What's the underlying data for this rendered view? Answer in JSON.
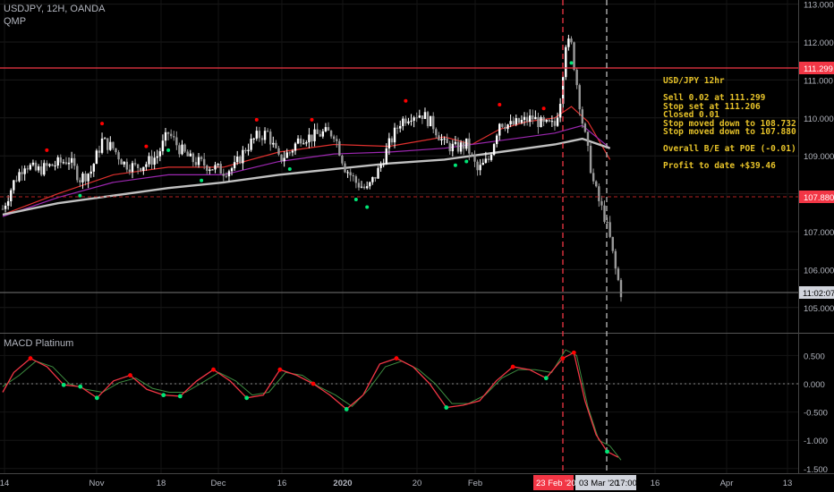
{
  "header": {
    "symbol_line": "USDJPY, 12H, OANDA",
    "indicator": "QMP"
  },
  "macd_panel": {
    "title": "MACD Platinum"
  },
  "annotation": {
    "title": "USD/JPY 12hr",
    "lines": [
      "Sell 0.02 at 111.299",
      "Stop set at 111.206",
      "Closed 0.01",
      "Stop moved down to 108.732",
      "Stop moved down to 107.880",
      "",
      "Overall B/E at POE (-0.01)",
      "",
      "Profit to date +$39.46"
    ]
  },
  "price_tags": {
    "level_entry": "111.299",
    "level_stop": "107.880",
    "last_time": "11:02:07"
  },
  "date_tags": {
    "event1": "23 Feb '20",
    "event2": "03 Mar '20",
    "event2_time": "17:00"
  },
  "colors": {
    "background": "#000000",
    "bull": "#ffffff",
    "bear": "#9a9a9a",
    "entry_line": "#f23645",
    "ema_red": "#e0302e",
    "ema_purple": "#9c27b0",
    "sma_gray": "#c0c0c0",
    "annotation": "#e6c229",
    "macd": "#f23645",
    "signal": "#4caf50",
    "dot_red": "#ff0000",
    "dot_green": "#00e676"
  },
  "chart_data": [
    {
      "type": "candlestick",
      "title": "USDJPY, 12H, OANDA",
      "y_axis_ticks": [
        105.0,
        106.0,
        107.0,
        108.0,
        109.0,
        110.0,
        111.0,
        112.0,
        113.0
      ],
      "ylim": [
        104.6,
        113.2
      ],
      "x_axis_ticks": [
        "14",
        "Nov",
        "18",
        "Dec",
        "16",
        "2020",
        "20",
        "Feb",
        "16",
        "Apr",
        "13"
      ],
      "horizontal_levels": [
        111.299,
        107.88
      ],
      "vertical_markers": [
        "23 Feb '20",
        "03 Mar '20"
      ],
      "close_path": [
        [
          0,
          107.6
        ],
        [
          4,
          108.3
        ],
        [
          8,
          108.8
        ],
        [
          12,
          108.6
        ],
        [
          16,
          108.7
        ],
        [
          20,
          108.8
        ],
        [
          24,
          108.9
        ],
        [
          28,
          108.4
        ],
        [
          32,
          108.6
        ],
        [
          36,
          109.4
        ],
        [
          40,
          109.2
        ],
        [
          44,
          108.8
        ],
        [
          48,
          108.7
        ],
        [
          52,
          108.8
        ],
        [
          56,
          109.0
        ],
        [
          60,
          109.6
        ],
        [
          64,
          109.2
        ],
        [
          68,
          108.9
        ],
        [
          72,
          108.8
        ],
        [
          76,
          108.7
        ],
        [
          80,
          108.6
        ],
        [
          84,
          108.7
        ],
        [
          88,
          109.2
        ],
        [
          92,
          109.5
        ],
        [
          96,
          109.6
        ],
        [
          100,
          108.9
        ],
        [
          104,
          109.1
        ],
        [
          108,
          109.5
        ],
        [
          112,
          109.5
        ],
        [
          116,
          109.6
        ],
        [
          120,
          109.6
        ],
        [
          124,
          108.7
        ],
        [
          128,
          108.3
        ],
        [
          132,
          108.1
        ],
        [
          136,
          108.6
        ],
        [
          140,
          109.3
        ],
        [
          144,
          109.9
        ],
        [
          148,
          110.1
        ],
        [
          152,
          110.1
        ],
        [
          156,
          109.8
        ],
        [
          160,
          109.3
        ],
        [
          164,
          109.2
        ],
        [
          168,
          109.3
        ],
        [
          172,
          108.6
        ],
        [
          176,
          108.9
        ],
        [
          180,
          109.9
        ],
        [
          184,
          109.8
        ],
        [
          188,
          109.9
        ],
        [
          192,
          110.0
        ],
        [
          196,
          109.8
        ],
        [
          200,
          109.8
        ],
        [
          202,
          110.5
        ],
        [
          204,
          112.0
        ],
        [
          206,
          111.9
        ],
        [
          208,
          110.9
        ],
        [
          210,
          109.9
        ],
        [
          212,
          109.1
        ],
        [
          214,
          108.3
        ],
        [
          216,
          107.8
        ],
        [
          218,
          107.4
        ],
        [
          220,
          106.8
        ],
        [
          222,
          106.0
        ],
        [
          224,
          105.4
        ]
      ],
      "series": [
        {
          "name": "ema_red",
          "values": [
            [
              0,
              107.45
            ],
            [
              20,
              108.0
            ],
            [
              40,
              108.5
            ],
            [
              60,
              108.7
            ],
            [
              80,
              108.7
            ],
            [
              100,
              109.1
            ],
            [
              120,
              109.3
            ],
            [
              140,
              109.25
            ],
            [
              160,
              109.5
            ],
            [
              170,
              109.3
            ],
            [
              180,
              109.7
            ],
            [
              190,
              109.9
            ],
            [
              200,
              110.0
            ],
            [
              206,
              110.3
            ],
            [
              212,
              109.9
            ],
            [
              220,
              108.9
            ]
          ]
        },
        {
          "name": "ema_purple",
          "values": [
            [
              0,
              107.4
            ],
            [
              20,
              107.9
            ],
            [
              40,
              108.3
            ],
            [
              60,
              108.5
            ],
            [
              80,
              108.5
            ],
            [
              100,
              108.85
            ],
            [
              120,
              109.05
            ],
            [
              140,
              109.1
            ],
            [
              160,
              109.2
            ],
            [
              180,
              109.4
            ],
            [
              200,
              109.6
            ],
            [
              210,
              109.8
            ],
            [
              220,
              109.2
            ]
          ]
        },
        {
          "name": "sma_gray",
          "values": [
            [
              0,
              107.45
            ],
            [
              20,
              107.75
            ],
            [
              40,
              107.95
            ],
            [
              60,
              108.15
            ],
            [
              80,
              108.3
            ],
            [
              100,
              108.5
            ],
            [
              120,
              108.65
            ],
            [
              140,
              108.8
            ],
            [
              160,
              108.9
            ],
            [
              180,
              109.1
            ],
            [
              200,
              109.3
            ],
            [
              210,
              109.45
            ],
            [
              220,
              109.2
            ]
          ]
        }
      ]
    },
    {
      "type": "line",
      "title": "MACD Platinum",
      "y_axis_ticks": [
        0.5,
        0.0,
        -0.5,
        -1.0,
        -1.5
      ],
      "ylim": [
        -1.55,
        0.7
      ],
      "series": [
        {
          "name": "MACD",
          "values": [
            [
              0,
              -0.15
            ],
            [
              4,
              0.2
            ],
            [
              10,
              0.45
            ],
            [
              16,
              0.3
            ],
            [
              22,
              -0.02
            ],
            [
              28,
              -0.05
            ],
            [
              34,
              -0.25
            ],
            [
              40,
              0.05
            ],
            [
              46,
              0.15
            ],
            [
              52,
              -0.1
            ],
            [
              58,
              -0.2
            ],
            [
              64,
              -0.22
            ],
            [
              70,
              0.05
            ],
            [
              76,
              0.25
            ],
            [
              82,
              0.05
            ],
            [
              88,
              -0.25
            ],
            [
              94,
              -0.2
            ],
            [
              100,
              0.25
            ],
            [
              106,
              0.15
            ],
            [
              112,
              0.0
            ],
            [
              118,
              -0.2
            ],
            [
              124,
              -0.45
            ],
            [
              130,
              -0.2
            ],
            [
              136,
              0.35
            ],
            [
              142,
              0.45
            ],
            [
              148,
              0.3
            ],
            [
              154,
              0.0
            ],
            [
              160,
              -0.42
            ],
            [
              166,
              -0.38
            ],
            [
              172,
              -0.3
            ],
            [
              178,
              0.05
            ],
            [
              184,
              0.3
            ],
            [
              190,
              0.25
            ],
            [
              196,
              0.1
            ],
            [
              202,
              0.45
            ],
            [
              206,
              0.55
            ],
            [
              210,
              -0.3
            ],
            [
              214,
              -0.9
            ],
            [
              218,
              -1.2
            ],
            [
              222,
              -1.3
            ]
          ]
        },
        {
          "name": "Signal",
          "values": [
            [
              0,
              -0.05
            ],
            [
              6,
              0.15
            ],
            [
              12,
              0.4
            ],
            [
              18,
              0.3
            ],
            [
              24,
              0.0
            ],
            [
              30,
              -0.1
            ],
            [
              36,
              -0.15
            ],
            [
              42,
              0.02
            ],
            [
              48,
              0.1
            ],
            [
              54,
              -0.08
            ],
            [
              60,
              -0.15
            ],
            [
              66,
              -0.15
            ],
            [
              72,
              0.02
            ],
            [
              78,
              0.2
            ],
            [
              84,
              0.05
            ],
            [
              90,
              -0.2
            ],
            [
              96,
              -0.15
            ],
            [
              102,
              0.2
            ],
            [
              108,
              0.15
            ],
            [
              114,
              -0.05
            ],
            [
              120,
              -0.2
            ],
            [
              126,
              -0.4
            ],
            [
              132,
              -0.1
            ],
            [
              138,
              0.3
            ],
            [
              144,
              0.4
            ],
            [
              150,
              0.25
            ],
            [
              156,
              0.0
            ],
            [
              162,
              -0.35
            ],
            [
              168,
              -0.35
            ],
            [
              174,
              -0.2
            ],
            [
              180,
              0.1
            ],
            [
              186,
              0.25
            ],
            [
              192,
              0.25
            ],
            [
              198,
              0.2
            ],
            [
              203,
              0.6
            ],
            [
              207,
              0.5
            ],
            [
              211,
              -0.4
            ],
            [
              215,
              -1.0
            ],
            [
              219,
              -1.1
            ],
            [
              223,
              -1.35
            ]
          ]
        }
      ]
    }
  ]
}
